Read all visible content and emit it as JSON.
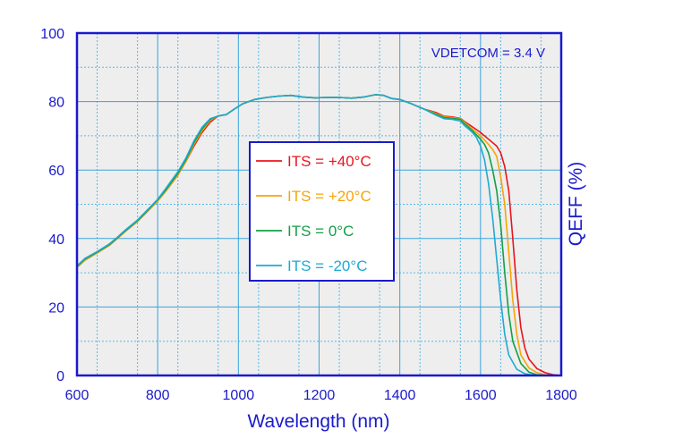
{
  "chart_data": {
    "type": "line",
    "title": "",
    "xlabel": "Wavelength (nm)",
    "ylabel": "QEFF (%)",
    "xlim": [
      600,
      1800
    ],
    "ylim": [
      0,
      100
    ],
    "x_ticks": [
      600,
      800,
      1000,
      1200,
      1400,
      1600,
      1800
    ],
    "y_ticks": [
      0,
      20,
      40,
      60,
      80,
      100
    ],
    "x_tick_labels": [
      "600",
      "800",
      "1000",
      "1200",
      "1400",
      "1600",
      "1800"
    ],
    "y_tick_labels": [
      "0",
      "20",
      "40",
      "60",
      "80",
      "100"
    ],
    "grid": true,
    "annotation": "VDETCOM = 3.4 V",
    "legend_position": "center",
    "series": [
      {
        "name": "ITS = +40°C",
        "color": "#e8141e",
        "x": [
          600,
          620,
          650,
          680,
          700,
          720,
          750,
          780,
          800,
          820,
          850,
          870,
          890,
          910,
          930,
          950,
          970,
          990,
          1010,
          1040,
          1070,
          1100,
          1130,
          1160,
          1190,
          1220,
          1250,
          1280,
          1310,
          1340,
          1360,
          1380,
          1400,
          1430,
          1460,
          1490,
          1510,
          1530,
          1550,
          1560,
          1580,
          1600,
          1620,
          1640,
          1650,
          1660,
          1670,
          1680,
          1690,
          1700,
          1710,
          1720,
          1740,
          1760,
          1780,
          1800
        ],
        "y": [
          31.6,
          33.7,
          35.8,
          38.0,
          40.0,
          42.1,
          45.0,
          48.5,
          51.0,
          53.8,
          58.5,
          62.5,
          67.0,
          71.0,
          74.0,
          75.8,
          76.2,
          77.8,
          79.3,
          80.6,
          81.2,
          81.6,
          81.8,
          81.3,
          81.1,
          81.2,
          81.2,
          81.0,
          81.3,
          82.0,
          81.8,
          80.9,
          80.6,
          79.3,
          77.8,
          76.8,
          75.7,
          75.5,
          75.1,
          74.2,
          72.6,
          71.0,
          69.0,
          67.0,
          65.0,
          61.0,
          54.0,
          40.0,
          25.0,
          14.0,
          8.0,
          4.8,
          2.0,
          0.8,
          0.2,
          0.0
        ]
      },
      {
        "name": "ITS = +20°C",
        "color": "#f5a50a",
        "x": [
          600,
          620,
          650,
          680,
          700,
          720,
          750,
          780,
          800,
          820,
          850,
          870,
          890,
          910,
          930,
          950,
          970,
          990,
          1010,
          1040,
          1070,
          1100,
          1130,
          1160,
          1190,
          1220,
          1250,
          1280,
          1310,
          1340,
          1360,
          1380,
          1400,
          1430,
          1460,
          1490,
          1510,
          1530,
          1550,
          1560,
          1580,
          1600,
          1620,
          1630,
          1640,
          1650,
          1660,
          1670,
          1680,
          1690,
          1700,
          1720,
          1740,
          1760,
          1780,
          1800
        ],
        "y": [
          31.6,
          33.7,
          35.8,
          38.0,
          40.0,
          42.1,
          45.0,
          48.5,
          51.0,
          53.8,
          58.5,
          62.5,
          67.5,
          71.5,
          74.5,
          75.8,
          76.2,
          77.8,
          79.3,
          80.6,
          81.2,
          81.6,
          81.8,
          81.3,
          81.1,
          81.2,
          81.2,
          81.0,
          81.3,
          82.0,
          81.8,
          80.9,
          80.6,
          79.3,
          77.8,
          76.5,
          75.5,
          75.3,
          75.0,
          74.0,
          72.0,
          70.0,
          67.5,
          66.0,
          64.0,
          58.0,
          50.0,
          36.0,
          22.0,
          12.0,
          6.0,
          2.2,
          0.8,
          0.2,
          0.0,
          0.0
        ]
      },
      {
        "name": "ITS = 0°C",
        "color": "#12a046",
        "x": [
          600,
          620,
          650,
          680,
          700,
          720,
          750,
          780,
          800,
          820,
          850,
          870,
          890,
          910,
          930,
          950,
          970,
          990,
          1010,
          1040,
          1070,
          1100,
          1130,
          1160,
          1190,
          1220,
          1250,
          1280,
          1310,
          1340,
          1360,
          1380,
          1400,
          1430,
          1460,
          1490,
          1510,
          1530,
          1550,
          1560,
          1580,
          1600,
          1610,
          1620,
          1630,
          1640,
          1650,
          1660,
          1670,
          1680,
          1700,
          1720,
          1740,
          1760,
          1780,
          1800
        ],
        "y": [
          31.8,
          34.0,
          36.0,
          38.2,
          40.2,
          42.3,
          45.2,
          48.8,
          51.3,
          54.2,
          59.0,
          63.0,
          68.0,
          72.0,
          74.8,
          75.8,
          76.2,
          77.8,
          79.3,
          80.6,
          81.2,
          81.6,
          81.8,
          81.3,
          81.1,
          81.2,
          81.2,
          81.0,
          81.3,
          82.0,
          81.8,
          80.9,
          80.6,
          79.3,
          77.8,
          76.3,
          75.3,
          75.1,
          74.8,
          73.6,
          71.5,
          69.0,
          67.5,
          65.0,
          60.0,
          54.0,
          44.0,
          30.0,
          18.0,
          10.0,
          3.5,
          1.0,
          0.2,
          0.0,
          0.0,
          0.0
        ]
      },
      {
        "name": "ITS = -20°C",
        "color": "#1eaad2",
        "x": [
          600,
          620,
          650,
          680,
          700,
          720,
          750,
          780,
          800,
          820,
          850,
          870,
          890,
          910,
          930,
          950,
          970,
          990,
          1010,
          1040,
          1070,
          1100,
          1130,
          1160,
          1190,
          1220,
          1250,
          1280,
          1310,
          1340,
          1360,
          1380,
          1400,
          1430,
          1460,
          1490,
          1510,
          1530,
          1550,
          1560,
          1570,
          1580,
          1590,
          1600,
          1610,
          1620,
          1630,
          1640,
          1650,
          1660,
          1670,
          1690,
          1710,
          1730,
          1760,
          1800
        ],
        "y": [
          32.0,
          34.2,
          36.2,
          38.4,
          40.4,
          42.5,
          45.4,
          49.0,
          51.5,
          54.6,
          59.5,
          63.5,
          68.5,
          72.5,
          75.0,
          75.8,
          76.2,
          77.8,
          79.3,
          80.6,
          81.2,
          81.6,
          81.8,
          81.3,
          81.1,
          81.2,
          81.2,
          81.0,
          81.3,
          82.0,
          81.8,
          80.9,
          80.6,
          79.3,
          77.8,
          76.0,
          75.0,
          74.8,
          74.3,
          73.0,
          72.0,
          71.0,
          69.5,
          67.0,
          63.0,
          56.0,
          46.0,
          34.0,
          22.0,
          12.0,
          6.0,
          1.8,
          0.5,
          0.1,
          0.0,
          0.0
        ]
      }
    ]
  }
}
